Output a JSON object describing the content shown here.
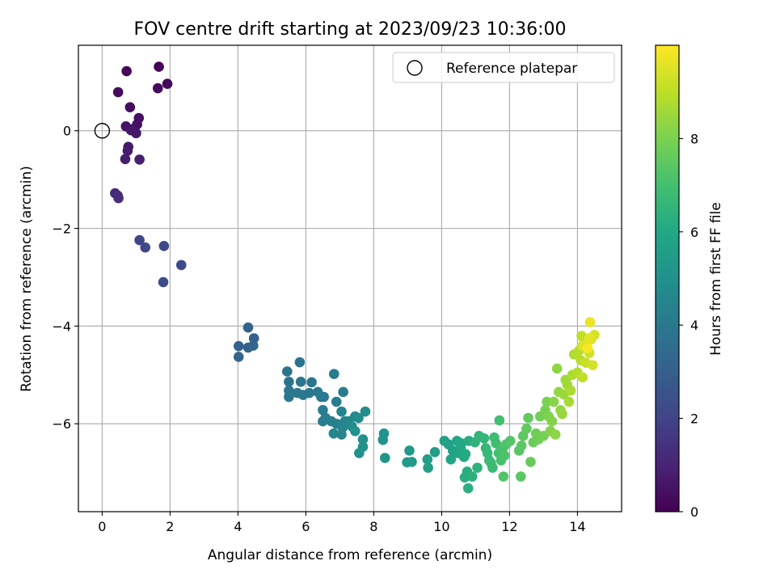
{
  "chart_data": {
    "type": "scatter",
    "title": "FOV centre drift starting at 2023/09/23 10:36:00",
    "xlabel": "Angular distance from reference (arcmin)",
    "ylabel": "Rotation from reference (arcmin)",
    "xlim": [
      -0.7,
      15.3
    ],
    "ylim": [
      -7.8,
      1.75
    ],
    "xticks": [
      0,
      2,
      4,
      6,
      8,
      10,
      12,
      14
    ],
    "yticks": [
      0,
      -2,
      -4,
      -6
    ],
    "xtick_labels": [
      "0",
      "2",
      "4",
      "6",
      "8",
      "10",
      "12",
      "14"
    ],
    "ytick_labels": [
      "0",
      "−2",
      "−4",
      "−6"
    ],
    "grid": true,
    "legend": {
      "position": "top-right",
      "entries": [
        "Reference platepar"
      ]
    },
    "reference_point": {
      "label": "Reference platepar",
      "x": 0,
      "y": 0,
      "marker": "open-circle"
    },
    "colorbar": {
      "label": "Hours from first FF file",
      "colormap": "viridis",
      "range": [
        0,
        10
      ],
      "ticks": [
        0,
        2,
        4,
        6,
        8
      ],
      "tick_labels": [
        "0",
        "2",
        "4",
        "6",
        "8"
      ]
    },
    "series": [
      {
        "points": [
          [
            1.67,
            1.31,
            0.1
          ],
          [
            0.72,
            1.22,
            0.15
          ],
          [
            1.92,
            0.96,
            0.2
          ],
          [
            1.64,
            0.87,
            0.25
          ],
          [
            0.47,
            0.79,
            0.3
          ],
          [
            0.82,
            0.48,
            0.35
          ],
          [
            1.08,
            0.26,
            0.4
          ],
          [
            1.03,
            0.13,
            0.45
          ],
          [
            0.7,
            0.09,
            0.5
          ],
          [
            0.95,
            0.05,
            0.55
          ],
          [
            1.0,
            -0.05,
            0.6
          ],
          [
            0.85,
            0.01,
            0.65
          ],
          [
            0.77,
            -0.33,
            0.7
          ],
          [
            0.75,
            -0.41,
            0.75
          ],
          [
            0.68,
            -0.58,
            0.8
          ],
          [
            1.1,
            -0.59,
            0.85
          ],
          [
            0.38,
            -1.28,
            1.2
          ],
          [
            0.46,
            -1.33,
            1.25
          ],
          [
            0.48,
            -1.38,
            1.3
          ],
          [
            1.1,
            -2.24,
            2.1
          ],
          [
            1.27,
            -2.39,
            2.15
          ],
          [
            1.82,
            -2.36,
            2.2
          ],
          [
            2.33,
            -2.75,
            2.25
          ],
          [
            1.8,
            -3.1,
            2.3
          ],
          [
            4.3,
            -4.03,
            3.1
          ],
          [
            4.47,
            -4.25,
            3.12
          ],
          [
            4.02,
            -4.41,
            3.15
          ],
          [
            4.3,
            -4.44,
            3.18
          ],
          [
            4.45,
            -4.4,
            3.2
          ],
          [
            4.02,
            -4.63,
            3.22
          ],
          [
            5.45,
            -4.93,
            3.8
          ],
          [
            5.82,
            -4.74,
            3.82
          ],
          [
            5.5,
            -5.14,
            3.85
          ],
          [
            5.85,
            -5.14,
            3.88
          ],
          [
            6.17,
            -5.15,
            3.9
          ],
          [
            5.5,
            -5.32,
            3.92
          ],
          [
            5.75,
            -5.37,
            3.95
          ],
          [
            5.5,
            -5.45,
            3.98
          ],
          [
            5.92,
            -5.41,
            4.0
          ],
          [
            6.1,
            -5.37,
            4.02
          ],
          [
            6.35,
            -5.35,
            4.05
          ],
          [
            6.45,
            -5.45,
            4.08
          ],
          [
            6.53,
            -5.45,
            4.1
          ],
          [
            6.83,
            -4.98,
            4.12
          ],
          [
            7.1,
            -5.35,
            4.15
          ],
          [
            6.9,
            -5.55,
            4.18
          ],
          [
            6.5,
            -5.72,
            4.2
          ],
          [
            6.58,
            -5.88,
            4.22
          ],
          [
            6.5,
            -5.95,
            4.25
          ],
          [
            6.75,
            -5.95,
            4.3
          ],
          [
            6.9,
            -6.0,
            4.35
          ],
          [
            7.05,
            -5.75,
            4.4
          ],
          [
            7.15,
            -5.95,
            4.45
          ],
          [
            7.08,
            -6.08,
            4.5
          ],
          [
            6.82,
            -6.2,
            4.55
          ],
          [
            7.05,
            -6.22,
            4.6
          ],
          [
            7.25,
            -5.95,
            4.65
          ],
          [
            7.45,
            -5.85,
            4.7
          ],
          [
            7.35,
            -6.05,
            4.75
          ],
          [
            7.55,
            -5.88,
            4.8
          ],
          [
            7.75,
            -5.75,
            4.85
          ],
          [
            7.68,
            -6.32,
            4.9
          ],
          [
            7.68,
            -6.47,
            4.95
          ],
          [
            7.57,
            -6.6,
            5.0
          ],
          [
            7.45,
            -6.15,
            5.05
          ],
          [
            8.3,
            -6.2,
            5.1
          ],
          [
            8.27,
            -6.33,
            5.15
          ],
          [
            8.33,
            -6.7,
            5.2
          ],
          [
            9.05,
            -6.55,
            5.3
          ],
          [
            8.98,
            -6.79,
            5.4
          ],
          [
            9.12,
            -6.78,
            5.45
          ],
          [
            9.58,
            -6.73,
            5.5
          ],
          [
            9.8,
            -6.58,
            5.55
          ],
          [
            9.6,
            -6.9,
            5.6
          ],
          [
            10.08,
            -6.35,
            5.65
          ],
          [
            10.2,
            -6.42,
            5.7
          ],
          [
            10.33,
            -6.55,
            5.75
          ],
          [
            10.45,
            -6.35,
            5.8
          ],
          [
            10.27,
            -6.73,
            5.85
          ],
          [
            10.48,
            -6.6,
            5.9
          ],
          [
            10.56,
            -6.5,
            5.95
          ],
          [
            10.58,
            -6.4,
            6.0
          ],
          [
            10.66,
            -6.68,
            6.05
          ],
          [
            10.7,
            -6.62,
            6.1
          ],
          [
            10.8,
            -6.35,
            6.15
          ],
          [
            10.75,
            -6.98,
            6.2
          ],
          [
            10.68,
            -7.1,
            6.25
          ],
          [
            10.78,
            -7.32,
            6.3
          ],
          [
            10.9,
            -7.08,
            6.35
          ],
          [
            11.05,
            -6.9,
            6.4
          ],
          [
            10.98,
            -6.38,
            6.45
          ],
          [
            11.1,
            -6.25,
            6.5
          ],
          [
            11.25,
            -6.3,
            6.55
          ],
          [
            11.3,
            -6.5,
            6.6
          ],
          [
            11.35,
            -6.6,
            6.65
          ],
          [
            11.4,
            -6.75,
            6.7
          ],
          [
            11.45,
            -6.8,
            6.75
          ],
          [
            11.5,
            -6.9,
            6.8
          ],
          [
            11.55,
            -6.28,
            6.85
          ],
          [
            11.6,
            -6.4,
            6.9
          ],
          [
            11.7,
            -5.93,
            6.95
          ],
          [
            11.68,
            -6.6,
            7.0
          ],
          [
            11.75,
            -6.75,
            7.05
          ],
          [
            11.8,
            -6.5,
            7.1
          ],
          [
            11.85,
            -6.65,
            7.15
          ],
          [
            11.9,
            -6.42,
            7.2
          ],
          [
            11.82,
            -7.08,
            7.25
          ],
          [
            12.02,
            -6.35,
            7.3
          ],
          [
            12.28,
            -6.55,
            7.35
          ],
          [
            12.35,
            -6.45,
            7.4
          ],
          [
            12.33,
            -7.08,
            7.45
          ],
          [
            12.4,
            -6.25,
            7.5
          ],
          [
            12.5,
            -6.1,
            7.55
          ],
          [
            12.55,
            -5.88,
            7.6
          ],
          [
            12.62,
            -6.78,
            7.65
          ],
          [
            12.7,
            -6.38,
            7.7
          ],
          [
            12.78,
            -6.2,
            7.75
          ],
          [
            12.85,
            -6.32,
            7.8
          ],
          [
            12.9,
            -5.85,
            7.85
          ],
          [
            13.0,
            -6.25,
            7.9
          ],
          [
            13.05,
            -5.72,
            7.95
          ],
          [
            13.1,
            -5.55,
            8.0
          ],
          [
            13.15,
            -5.85,
            8.05
          ],
          [
            13.2,
            -6.15,
            8.1
          ],
          [
            13.25,
            -5.95,
            8.15
          ],
          [
            13.3,
            -5.55,
            8.2
          ],
          [
            13.35,
            -6.22,
            8.25
          ],
          [
            13.4,
            -4.87,
            8.3
          ],
          [
            13.45,
            -5.35,
            8.35
          ],
          [
            13.5,
            -5.72,
            8.4
          ],
          [
            13.55,
            -5.8,
            8.45
          ],
          [
            13.6,
            -5.4,
            8.5
          ],
          [
            13.65,
            -5.1,
            8.55
          ],
          [
            13.7,
            -5.2,
            8.6
          ],
          [
            13.75,
            -5.55,
            8.65
          ],
          [
            13.8,
            -5.32,
            8.7
          ],
          [
            13.85,
            -5.0,
            8.75
          ],
          [
            13.9,
            -4.58,
            8.8
          ],
          [
            14.0,
            -4.95,
            8.85
          ],
          [
            14.05,
            -4.5,
            8.9
          ],
          [
            14.1,
            -4.7,
            8.95
          ],
          [
            14.12,
            -4.2,
            9.0
          ],
          [
            14.15,
            -5.05,
            9.05
          ],
          [
            14.2,
            -4.3,
            9.1
          ],
          [
            14.25,
            -4.75,
            9.15
          ],
          [
            14.3,
            -4.45,
            9.2
          ],
          [
            14.35,
            -4.55,
            9.25
          ],
          [
            14.4,
            -4.27,
            9.3
          ],
          [
            14.45,
            -4.8,
            9.35
          ],
          [
            14.5,
            -4.18,
            9.4
          ],
          [
            14.15,
            -4.4,
            9.5
          ],
          [
            14.35,
            -4.25,
            9.6
          ],
          [
            14.37,
            -3.92,
            9.7
          ],
          [
            14.3,
            -4.45,
            9.9
          ]
        ]
      }
    ]
  }
}
